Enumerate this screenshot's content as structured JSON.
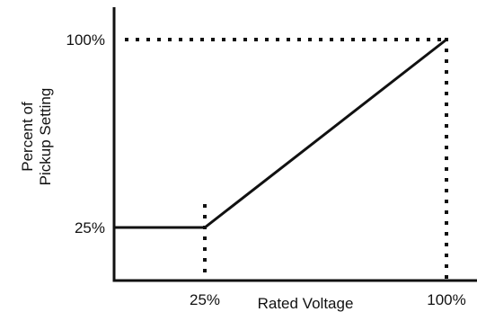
{
  "chart_data": {
    "type": "line",
    "title": "",
    "xlabel": "Rated Voltage",
    "ylabel": "Percent of\nPickup Setting",
    "ylabel_lines": [
      "Percent of",
      "Pickup Setting"
    ],
    "xlim": [
      0,
      110
    ],
    "ylim": [
      0,
      110
    ],
    "x_ticks": [
      {
        "value": 25,
        "label": "25%"
      },
      {
        "value": 100,
        "label": "100%"
      }
    ],
    "y_ticks": [
      {
        "value": 25,
        "label": "25%"
      },
      {
        "value": 100,
        "label": "100%"
      }
    ],
    "series": [
      {
        "x": [
          0,
          25,
          100
        ],
        "y": [
          25,
          25,
          100
        ]
      }
    ],
    "reference_lines": [
      {
        "orientation": "vertical",
        "x": 25,
        "style": "dotted"
      },
      {
        "orientation": "vertical",
        "x": 100,
        "style": "dotted"
      },
      {
        "orientation": "horizontal",
        "y": 100,
        "style": "dotted"
      }
    ],
    "grid": false,
    "legend": "none",
    "colors": {
      "line": "#111111",
      "axis": "#111111",
      "dots": "#111111"
    }
  }
}
